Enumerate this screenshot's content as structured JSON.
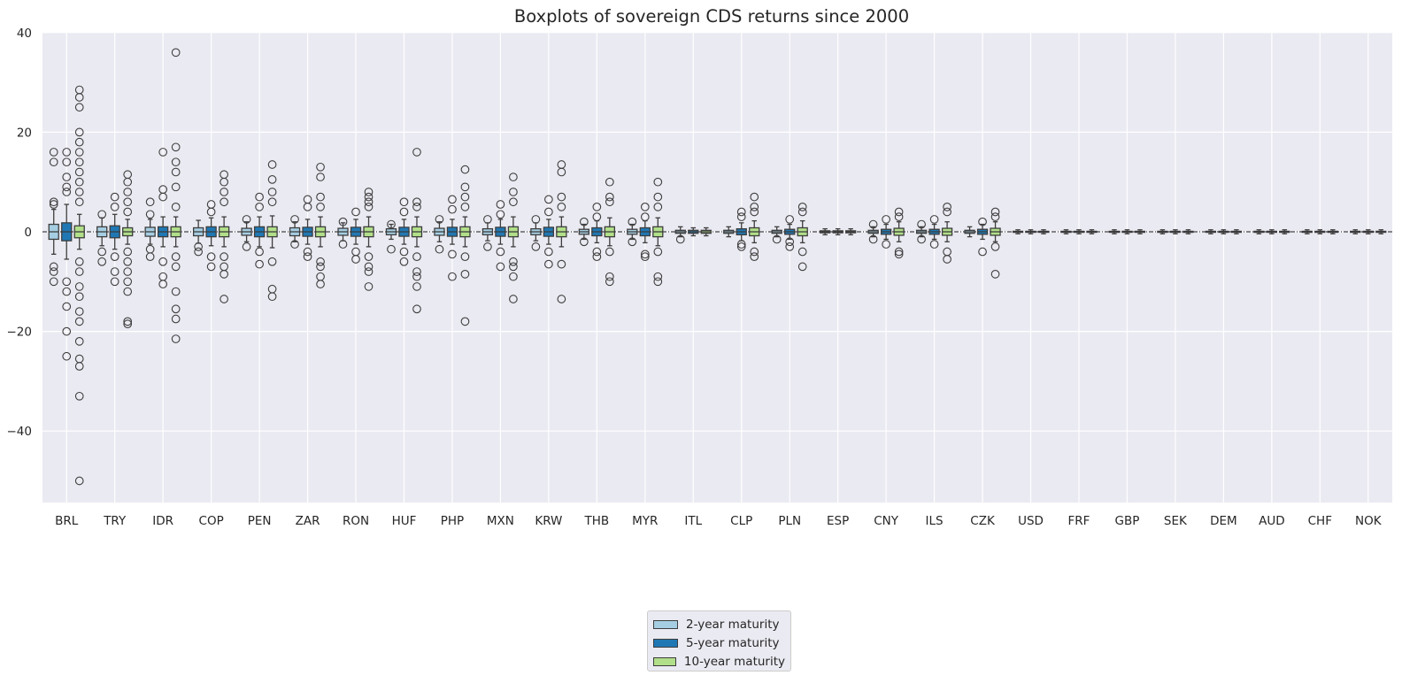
{
  "chart_data": {
    "type": "boxplot",
    "title": "Boxplots of sovereign CDS returns since 2000",
    "xlabel": "",
    "ylabel": "",
    "ylim": [
      -55,
      40
    ],
    "yticks": [
      40,
      20,
      0,
      -20,
      -40
    ],
    "grid": true,
    "reference_line": 0,
    "legend_position": "bottom-center",
    "categories": [
      "BRL",
      "TRY",
      "IDR",
      "COP",
      "PEN",
      "ZAR",
      "RON",
      "HUF",
      "PHP",
      "MXN",
      "KRW",
      "THB",
      "MYR",
      "ITL",
      "CLP",
      "PLN",
      "ESP",
      "CNY",
      "ILS",
      "CZK",
      "USD",
      "FRF",
      "GBP",
      "SEK",
      "DEM",
      "AUD",
      "CHF",
      "NOK"
    ],
    "series": [
      {
        "name": "2-year maturity",
        "color": "#a6cee3"
      },
      {
        "name": "5-year maturity",
        "color": "#1f78b4"
      },
      {
        "name": "10-year maturity",
        "color": "#b2df8a"
      }
    ],
    "boxes": [
      [
        {
          "q1": -1.5,
          "med": 0,
          "q3": 1.5,
          "wlo": -4.5,
          "whi": 4.5,
          "out": [
            5.5,
            -7,
            -10,
            16,
            14,
            6,
            -8
          ]
        },
        {
          "q1": -1.8,
          "med": 0,
          "q3": 1.8,
          "wlo": -5.5,
          "whi": 5.5,
          "out": [
            16,
            14,
            11,
            9,
            -12,
            -15,
            -20,
            -25,
            8,
            -10
          ]
        },
        {
          "q1": -1.2,
          "med": 0,
          "q3": 1.2,
          "wlo": -3.5,
          "whi": 3.5,
          "out": [
            28.5,
            27,
            25,
            20,
            18,
            16,
            14,
            12,
            10,
            8,
            6,
            -6,
            -8,
            -11,
            -13,
            -16,
            -18,
            -22,
            -25.5,
            -27,
            -33,
            -50
          ]
        }
      ],
      [
        {
          "q1": -1,
          "med": 0,
          "q3": 1,
          "wlo": -2.8,
          "whi": 2.8,
          "out": [
            3.5,
            -4,
            -6
          ]
        },
        {
          "q1": -1.2,
          "med": 0,
          "q3": 1.2,
          "wlo": -3.5,
          "whi": 3.5,
          "out": [
            7,
            5,
            -5,
            -8,
            -10
          ]
        },
        {
          "q1": -0.8,
          "med": 0,
          "q3": 0.8,
          "wlo": -2.5,
          "whi": 2.5,
          "out": [
            11.5,
            10,
            8,
            6,
            4,
            -4,
            -6,
            -8,
            -10,
            -12,
            -18,
            -18.5
          ]
        }
      ],
      [
        {
          "q1": -0.9,
          "med": 0,
          "q3": 0.9,
          "wlo": -2.5,
          "whi": 2.5,
          "out": [
            6,
            3.5,
            -3.5,
            -5
          ]
        },
        {
          "q1": -1,
          "med": 0,
          "q3": 1,
          "wlo": -3,
          "whi": 3,
          "out": [
            16,
            8.5,
            7,
            -6,
            -9,
            -10.5
          ]
        },
        {
          "q1": -1,
          "med": 0,
          "q3": 1,
          "wlo": -3,
          "whi": 3,
          "out": [
            36,
            17,
            14,
            12,
            9,
            5,
            -5,
            -7,
            -12,
            -15.5,
            -17.5,
            -21.5
          ]
        }
      ],
      [
        {
          "q1": -0.8,
          "med": 0,
          "q3": 0.8,
          "wlo": -2.3,
          "whi": 2.3,
          "out": [
            -3,
            -4
          ]
        },
        {
          "q1": -1,
          "med": 0,
          "q3": 1,
          "wlo": -2.8,
          "whi": 2.8,
          "out": [
            5.5,
            4,
            -5,
            -7
          ]
        },
        {
          "q1": -1,
          "med": 0,
          "q3": 1,
          "wlo": -3,
          "whi": 3,
          "out": [
            11.5,
            10,
            8,
            6,
            -5,
            -7,
            -8.5,
            -13.5
          ]
        }
      ],
      [
        {
          "q1": -0.7,
          "med": 0,
          "q3": 0.7,
          "wlo": -2,
          "whi": 2,
          "out": [
            2.5,
            -3
          ]
        },
        {
          "q1": -1,
          "med": 0,
          "q3": 1,
          "wlo": -3,
          "whi": 3,
          "out": [
            7,
            5,
            -4,
            -6.5
          ]
        },
        {
          "q1": -1,
          "med": 0,
          "q3": 1,
          "wlo": -3.2,
          "whi": 3.2,
          "out": [
            13.5,
            10.5,
            8,
            6,
            -6,
            -11.5,
            -13
          ]
        }
      ],
      [
        {
          "q1": -0.8,
          "med": 0,
          "q3": 0.8,
          "wlo": -2,
          "whi": 2,
          "out": [
            2.5,
            -2.5
          ]
        },
        {
          "q1": -0.9,
          "med": 0,
          "q3": 0.9,
          "wlo": -2.5,
          "whi": 2.5,
          "out": [
            6.5,
            5,
            -4,
            -5
          ]
        },
        {
          "q1": -1,
          "med": 0,
          "q3": 1,
          "wlo": -3,
          "whi": 3,
          "out": [
            13,
            11,
            7,
            5,
            -6,
            -7,
            -9,
            -10.5
          ]
        }
      ],
      [
        {
          "q1": -0.7,
          "med": 0,
          "q3": 0.7,
          "wlo": -1.8,
          "whi": 1.8,
          "out": [
            2,
            -2.5
          ]
        },
        {
          "q1": -0.9,
          "med": 0,
          "q3": 0.9,
          "wlo": -2.5,
          "whi": 2.5,
          "out": [
            4,
            -4,
            -5.5
          ]
        },
        {
          "q1": -1,
          "med": 0,
          "q3": 1,
          "wlo": -3,
          "whi": 3,
          "out": [
            8,
            7,
            6,
            5,
            -5,
            -7,
            -8,
            -11
          ]
        }
      ],
      [
        {
          "q1": -0.6,
          "med": 0,
          "q3": 0.6,
          "wlo": -1.5,
          "whi": 1.5,
          "out": [
            1.5,
            -3.5
          ]
        },
        {
          "q1": -0.9,
          "med": 0,
          "q3": 0.9,
          "wlo": -2.5,
          "whi": 2.5,
          "out": [
            6,
            4,
            -4,
            -6
          ]
        },
        {
          "q1": -1,
          "med": 0,
          "q3": 1,
          "wlo": -3,
          "whi": 3,
          "out": [
            16,
            6,
            5,
            -5,
            -8,
            -9,
            -11,
            -15.5
          ]
        }
      ],
      [
        {
          "q1": -0.7,
          "med": 0,
          "q3": 0.7,
          "wlo": -2,
          "whi": 2,
          "out": [
            2.5,
            -3.5
          ]
        },
        {
          "q1": -0.9,
          "med": 0,
          "q3": 0.9,
          "wlo": -2.5,
          "whi": 2.5,
          "out": [
            6.5,
            4.5,
            -4.5,
            -9
          ]
        },
        {
          "q1": -1,
          "med": 0,
          "q3": 1,
          "wlo": -3,
          "whi": 3,
          "out": [
            12.5,
            9,
            7,
            5,
            -5,
            -8.5,
            -18
          ]
        }
      ],
      [
        {
          "q1": -0.6,
          "med": 0,
          "q3": 0.6,
          "wlo": -1.8,
          "whi": 1.8,
          "out": [
            2.5,
            -3
          ]
        },
        {
          "q1": -0.9,
          "med": 0,
          "q3": 0.9,
          "wlo": -2.5,
          "whi": 2.5,
          "out": [
            5.5,
            3.5,
            -4,
            -7
          ]
        },
        {
          "q1": -1,
          "med": 0,
          "q3": 1,
          "wlo": -3,
          "whi": 3,
          "out": [
            11,
            8,
            6,
            -6,
            -7,
            -9,
            -13.5
          ]
        }
      ],
      [
        {
          "q1": -0.6,
          "med": 0,
          "q3": 0.6,
          "wlo": -1.8,
          "whi": 1.8,
          "out": [
            2.5,
            -3
          ]
        },
        {
          "q1": -0.9,
          "med": 0,
          "q3": 0.9,
          "wlo": -2.5,
          "whi": 2.5,
          "out": [
            6.5,
            4,
            -4,
            -6.5
          ]
        },
        {
          "q1": -1,
          "med": 0,
          "q3": 1,
          "wlo": -3,
          "whi": 3,
          "out": [
            13.5,
            12,
            7,
            5,
            -6.5,
            -13.5
          ]
        }
      ],
      [
        {
          "q1": -0.5,
          "med": 0,
          "q3": 0.5,
          "wlo": -1.5,
          "whi": 1.5,
          "out": [
            2,
            -2
          ]
        },
        {
          "q1": -0.8,
          "med": 0,
          "q3": 0.8,
          "wlo": -2.2,
          "whi": 2.2,
          "out": [
            5,
            3,
            -4,
            -5
          ]
        },
        {
          "q1": -1,
          "med": 0,
          "q3": 1,
          "wlo": -2.8,
          "whi": 2.8,
          "out": [
            10,
            7,
            6,
            -4,
            -9,
            -10
          ]
        }
      ],
      [
        {
          "q1": -0.5,
          "med": 0,
          "q3": 0.5,
          "wlo": -1.5,
          "whi": 1.5,
          "out": [
            2,
            -2
          ]
        },
        {
          "q1": -0.8,
          "med": 0,
          "q3": 0.8,
          "wlo": -2.2,
          "whi": 2.2,
          "out": [
            5,
            3,
            -4.5,
            -5
          ]
        },
        {
          "q1": -1,
          "med": 0,
          "q3": 1,
          "wlo": -2.8,
          "whi": 2.8,
          "out": [
            10,
            7,
            5,
            -4,
            -9,
            -10
          ]
        }
      ],
      [
        {
          "q1": -0.3,
          "med": 0,
          "q3": 0.3,
          "wlo": -1,
          "whi": 1,
          "out": [
            -1.5
          ]
        },
        {
          "q1": -0.3,
          "med": 0,
          "q3": 0.3,
          "wlo": -0.8,
          "whi": 0.8,
          "out": []
        },
        {
          "q1": -0.3,
          "med": 0,
          "q3": 0.3,
          "wlo": -0.8,
          "whi": 0.8,
          "out": []
        }
      ],
      [
        {
          "q1": -0.3,
          "med": 0,
          "q3": 0.3,
          "wlo": -1,
          "whi": 1,
          "out": []
        },
        {
          "q1": -0.6,
          "med": 0,
          "q3": 0.6,
          "wlo": -1.8,
          "whi": 1.8,
          "out": [
            4,
            3,
            -2.5,
            -3
          ]
        },
        {
          "q1": -0.8,
          "med": 0,
          "q3": 0.8,
          "wlo": -2.2,
          "whi": 2.2,
          "out": [
            7,
            5,
            4,
            -4,
            -5
          ]
        }
      ],
      [
        {
          "q1": -0.3,
          "med": 0,
          "q3": 0.3,
          "wlo": -1,
          "whi": 1,
          "out": [
            -1.5
          ]
        },
        {
          "q1": -0.5,
          "med": 0,
          "q3": 0.5,
          "wlo": -1.5,
          "whi": 1.5,
          "out": [
            2.5,
            -2,
            -3
          ]
        },
        {
          "q1": -0.8,
          "med": 0,
          "q3": 0.8,
          "wlo": -2.2,
          "whi": 2.2,
          "out": [
            5,
            4,
            -4,
            -7
          ]
        }
      ],
      [
        {
          "q1": -0.2,
          "med": 0,
          "q3": 0.2,
          "wlo": -0.6,
          "whi": 0.6,
          "out": []
        },
        {
          "q1": -0.2,
          "med": 0,
          "q3": 0.2,
          "wlo": -0.6,
          "whi": 0.6,
          "out": []
        },
        {
          "q1": -0.2,
          "med": 0,
          "q3": 0.2,
          "wlo": -0.6,
          "whi": 0.6,
          "out": []
        }
      ],
      [
        {
          "q1": -0.3,
          "med": 0,
          "q3": 0.3,
          "wlo": -1,
          "whi": 1,
          "out": [
            1.5,
            -1.5
          ]
        },
        {
          "q1": -0.5,
          "med": 0,
          "q3": 0.5,
          "wlo": -1.5,
          "whi": 1.5,
          "out": [
            2.5,
            -2.5
          ]
        },
        {
          "q1": -0.7,
          "med": 0,
          "q3": 0.7,
          "wlo": -2,
          "whi": 2,
          "out": [
            4,
            3,
            -4,
            -4.5
          ]
        }
      ],
      [
        {
          "q1": -0.3,
          "med": 0,
          "q3": 0.3,
          "wlo": -1,
          "whi": 1,
          "out": [
            1.5,
            -1.5
          ]
        },
        {
          "q1": -0.5,
          "med": 0,
          "q3": 0.5,
          "wlo": -1.5,
          "whi": 1.5,
          "out": [
            2.5,
            -2.5
          ]
        },
        {
          "q1": -0.7,
          "med": 0,
          "q3": 0.7,
          "wlo": -2,
          "whi": 2,
          "out": [
            5,
            4,
            -4,
            -5.5
          ]
        }
      ],
      [
        {
          "q1": -0.3,
          "med": 0,
          "q3": 0.3,
          "wlo": -1,
          "whi": 1,
          "out": []
        },
        {
          "q1": -0.5,
          "med": 0,
          "q3": 0.5,
          "wlo": -1.5,
          "whi": 1.5,
          "out": [
            2,
            -4
          ]
        },
        {
          "q1": -0.7,
          "med": 0,
          "q3": 0.7,
          "wlo": -2,
          "whi": 2,
          "out": [
            4,
            3,
            -3,
            -8.5
          ]
        }
      ],
      [
        {
          "q1": -0.1,
          "med": 0,
          "q3": 0.1,
          "wlo": -0.4,
          "whi": 0.4,
          "out": []
        },
        {
          "q1": -0.1,
          "med": 0,
          "q3": 0.1,
          "wlo": -0.4,
          "whi": 0.4,
          "out": []
        },
        {
          "q1": -0.1,
          "med": 0,
          "q3": 0.1,
          "wlo": -0.4,
          "whi": 0.4,
          "out": []
        }
      ],
      [
        {
          "q1": -0.1,
          "med": 0,
          "q3": 0.1,
          "wlo": -0.4,
          "whi": 0.4,
          "out": []
        },
        {
          "q1": -0.1,
          "med": 0,
          "q3": 0.1,
          "wlo": -0.4,
          "whi": 0.4,
          "out": []
        },
        {
          "q1": -0.1,
          "med": 0,
          "q3": 0.1,
          "wlo": -0.4,
          "whi": 0.4,
          "out": []
        }
      ],
      [
        {
          "q1": -0.1,
          "med": 0,
          "q3": 0.1,
          "wlo": -0.4,
          "whi": 0.4,
          "out": []
        },
        {
          "q1": -0.1,
          "med": 0,
          "q3": 0.1,
          "wlo": -0.4,
          "whi": 0.4,
          "out": []
        },
        {
          "q1": -0.1,
          "med": 0,
          "q3": 0.1,
          "wlo": -0.4,
          "whi": 0.4,
          "out": []
        }
      ],
      [
        {
          "q1": -0.1,
          "med": 0,
          "q3": 0.1,
          "wlo": -0.4,
          "whi": 0.4,
          "out": []
        },
        {
          "q1": -0.1,
          "med": 0,
          "q3": 0.1,
          "wlo": -0.4,
          "whi": 0.4,
          "out": []
        },
        {
          "q1": -0.1,
          "med": 0,
          "q3": 0.1,
          "wlo": -0.4,
          "whi": 0.4,
          "out": []
        }
      ],
      [
        {
          "q1": -0.1,
          "med": 0,
          "q3": 0.1,
          "wlo": -0.4,
          "whi": 0.4,
          "out": []
        },
        {
          "q1": -0.1,
          "med": 0,
          "q3": 0.1,
          "wlo": -0.4,
          "whi": 0.4,
          "out": []
        },
        {
          "q1": -0.1,
          "med": 0,
          "q3": 0.1,
          "wlo": -0.4,
          "whi": 0.4,
          "out": []
        }
      ],
      [
        {
          "q1": -0.1,
          "med": 0,
          "q3": 0.1,
          "wlo": -0.4,
          "whi": 0.4,
          "out": []
        },
        {
          "q1": -0.1,
          "med": 0,
          "q3": 0.1,
          "wlo": -0.4,
          "whi": 0.4,
          "out": []
        },
        {
          "q1": -0.1,
          "med": 0,
          "q3": 0.1,
          "wlo": -0.4,
          "whi": 0.4,
          "out": []
        }
      ],
      [
        {
          "q1": -0.1,
          "med": 0,
          "q3": 0.1,
          "wlo": -0.4,
          "whi": 0.4,
          "out": []
        },
        {
          "q1": -0.1,
          "med": 0,
          "q3": 0.1,
          "wlo": -0.4,
          "whi": 0.4,
          "out": []
        },
        {
          "q1": -0.1,
          "med": 0,
          "q3": 0.1,
          "wlo": -0.4,
          "whi": 0.4,
          "out": []
        }
      ],
      [
        {
          "q1": -0.1,
          "med": 0,
          "q3": 0.1,
          "wlo": -0.4,
          "whi": 0.4,
          "out": []
        },
        {
          "q1": -0.1,
          "med": 0,
          "q3": 0.1,
          "wlo": -0.4,
          "whi": 0.4,
          "out": []
        },
        {
          "q1": -0.1,
          "med": 0,
          "q3": 0.1,
          "wlo": -0.4,
          "whi": 0.4,
          "out": []
        }
      ]
    ]
  }
}
